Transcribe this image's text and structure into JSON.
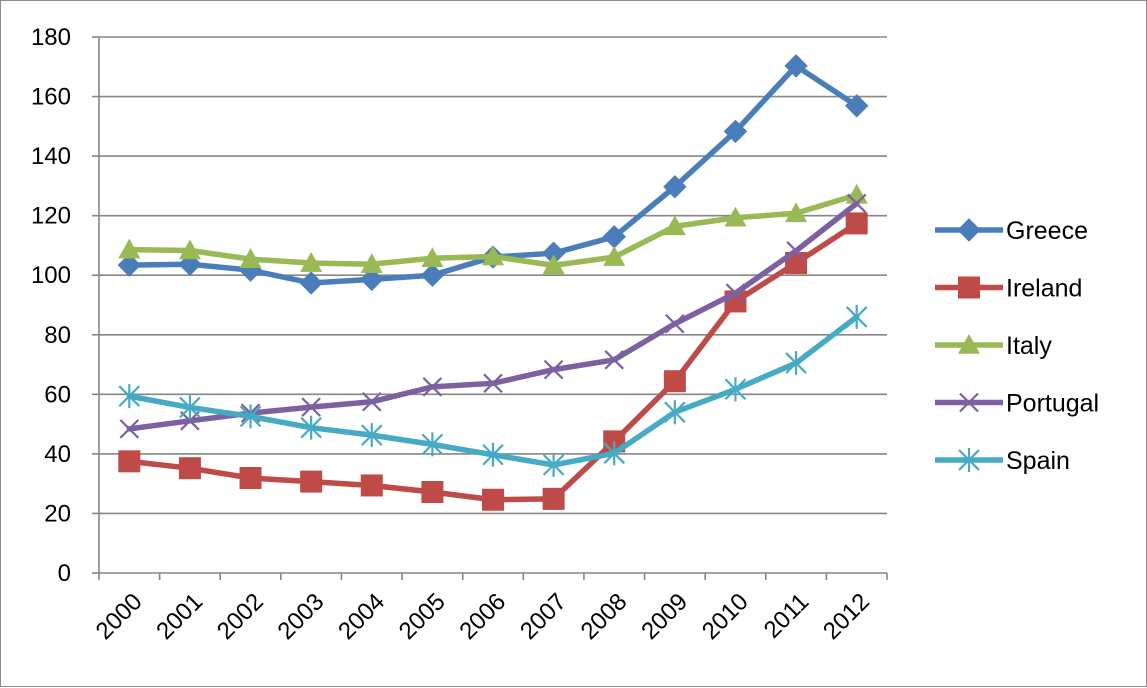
{
  "chart_data": {
    "type": "line",
    "title": "",
    "xlabel": "",
    "ylabel": "",
    "categories": [
      "2000",
      "2001",
      "2002",
      "2003",
      "2004",
      "2005",
      "2006",
      "2007",
      "2008",
      "2009",
      "2010",
      "2011",
      "2012"
    ],
    "ylim": [
      0,
      180
    ],
    "yticks": [
      0,
      20,
      40,
      60,
      80,
      100,
      120,
      140,
      160,
      180
    ],
    "grid": true,
    "legend_position": "right",
    "series": [
      {
        "name": "Greece",
        "color": "#4a7ebb",
        "marker": "diamond",
        "values": [
          103.4,
          103.7,
          101.7,
          97.4,
          98.6,
          100.0,
          106.1,
          107.4,
          112.9,
          129.7,
          148.3,
          170.3,
          156.9
        ]
      },
      {
        "name": "Ireland",
        "color": "#be4b48",
        "marker": "square",
        "values": [
          37.5,
          35.2,
          31.9,
          30.7,
          29.4,
          27.2,
          24.6,
          24.9,
          44.2,
          64.4,
          91.2,
          104.1,
          117.4
        ]
      },
      {
        "name": "Italy",
        "color": "#98b954",
        "marker": "triangle",
        "values": [
          108.6,
          108.3,
          105.4,
          104.1,
          103.7,
          105.7,
          106.3,
          103.3,
          106.1,
          116.4,
          119.3,
          120.8,
          127.0
        ]
      },
      {
        "name": "Portugal",
        "color": "#7d60a0",
        "marker": "x",
        "values": [
          48.4,
          51.1,
          53.7,
          55.7,
          57.5,
          62.5,
          63.7,
          68.3,
          71.6,
          83.7,
          94.0,
          108.2,
          124.1
        ]
      },
      {
        "name": "Spain",
        "color": "#46aac5",
        "marker": "star",
        "values": [
          59.4,
          55.6,
          52.6,
          48.8,
          46.3,
          43.2,
          39.7,
          36.3,
          40.2,
          54.0,
          61.7,
          70.5,
          86.0
        ]
      }
    ]
  }
}
